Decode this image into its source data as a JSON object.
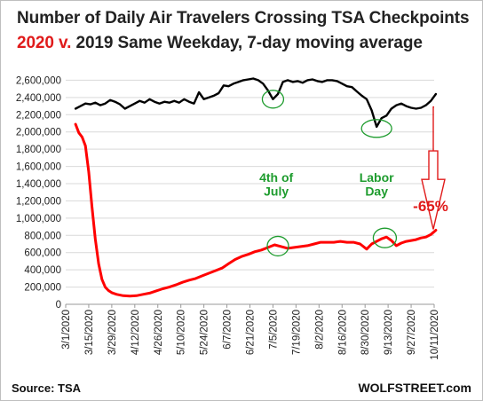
{
  "title": {
    "line1": "Number of Daily Air Travelers Crossing TSA Checkpoints",
    "line2_red": "2020 v.",
    "line2_rest": "2019 Same Weekday, 7-day moving average"
  },
  "source": "Source: TSA",
  "credit": "WOLFSTREET.com",
  "colors": {
    "series_2019": "#000000",
    "series_2020": "#ff0000",
    "annotation_green": "#1e9c2e",
    "annotation_red": "#e01b1b",
    "grid": "#d9d9d9"
  },
  "chart_data": {
    "type": "line",
    "ylim": [
      0,
      2800000
    ],
    "yticks": [
      0,
      200000,
      400000,
      600000,
      800000,
      1000000,
      1200000,
      1400000,
      1600000,
      1800000,
      2000000,
      2200000,
      2400000,
      2600000
    ],
    "ytick_labels": [
      "0",
      "200,000",
      "400,000",
      "600,000",
      "800,000",
      "1,000,000",
      "1,200,000",
      "1,400,000",
      "1,600,000",
      "1,800,000",
      "2,000,000",
      "2,200,000",
      "2,400,000",
      "2,600,000"
    ],
    "xlim": [
      "2020-03-01",
      "2020-10-11"
    ],
    "xticks": [
      "2020-03-01",
      "2020-03-15",
      "2020-03-29",
      "2020-04-12",
      "2020-04-26",
      "2020-05-10",
      "2020-05-24",
      "2020-06-07",
      "2020-06-21",
      "2020-07-05",
      "2020-07-19",
      "2020-08-02",
      "2020-08-16",
      "2020-08-30",
      "2020-09-13",
      "2020-09-27",
      "2020-10-11"
    ],
    "xtick_labels": [
      "3/1/2020",
      "3/15/2020",
      "3/29/2020",
      "4/12/2020",
      "4/26/2020",
      "5/10/2020",
      "5/24/2020",
      "6/7/2020",
      "6/21/2020",
      "7/5/2020",
      "7/19/2020",
      "8/2/2020",
      "8/16/2020",
      "8/30/2020",
      "9/13/2020",
      "9/27/2020",
      "10/11/2020"
    ],
    "grid": "horizontal",
    "series": [
      {
        "x": [
          "2020-03-07",
          "2020-03-10",
          "2020-03-13",
          "2020-03-16",
          "2020-03-19",
          "2020-03-22",
          "2020-03-25",
          "2020-03-28",
          "2020-03-31",
          "2020-04-03",
          "2020-04-06",
          "2020-04-09",
          "2020-04-12",
          "2020-04-15",
          "2020-04-18",
          "2020-04-21",
          "2020-04-24",
          "2020-04-27",
          "2020-04-30",
          "2020-05-03",
          "2020-05-06",
          "2020-05-09",
          "2020-05-12",
          "2020-05-15",
          "2020-05-18",
          "2020-05-21",
          "2020-05-24",
          "2020-05-27",
          "2020-05-30",
          "2020-06-02",
          "2020-06-05",
          "2020-06-08",
          "2020-06-11",
          "2020-06-14",
          "2020-06-17",
          "2020-06-20",
          "2020-06-23",
          "2020-06-26",
          "2020-06-29",
          "2020-07-02",
          "2020-07-05",
          "2020-07-08",
          "2020-07-11",
          "2020-07-14",
          "2020-07-17",
          "2020-07-20",
          "2020-07-23",
          "2020-07-26",
          "2020-07-29",
          "2020-08-01",
          "2020-08-04",
          "2020-08-07",
          "2020-08-10",
          "2020-08-13",
          "2020-08-16",
          "2020-08-19",
          "2020-08-22",
          "2020-08-25",
          "2020-08-28",
          "2020-08-31",
          "2020-09-03",
          "2020-09-06",
          "2020-09-09",
          "2020-09-12",
          "2020-09-15",
          "2020-09-18",
          "2020-09-21",
          "2020-09-24",
          "2020-09-27",
          "2020-09-30",
          "2020-10-03",
          "2020-10-06",
          "2020-10-09",
          "2020-10-12"
        ],
        "values": [
          2270000,
          2300000,
          2330000,
          2320000,
          2340000,
          2310000,
          2330000,
          2370000,
          2350000,
          2320000,
          2270000,
          2300000,
          2330000,
          2360000,
          2340000,
          2380000,
          2350000,
          2330000,
          2350000,
          2340000,
          2360000,
          2340000,
          2380000,
          2350000,
          2330000,
          2460000,
          2380000,
          2400000,
          2420000,
          2450000,
          2540000,
          2530000,
          2560000,
          2580000,
          2600000,
          2610000,
          2620000,
          2600000,
          2560000,
          2480000,
          2380000,
          2440000,
          2580000,
          2600000,
          2580000,
          2590000,
          2570000,
          2600000,
          2610000,
          2590000,
          2580000,
          2600000,
          2600000,
          2590000,
          2560000,
          2530000,
          2520000,
          2470000,
          2420000,
          2380000,
          2250000,
          2060000,
          2160000,
          2190000,
          2270000,
          2310000,
          2330000,
          2300000,
          2280000,
          2270000,
          2280000,
          2310000,
          2360000,
          2440000
        ]
      },
      {
        "x": [
          "2020-03-07",
          "2020-03-09",
          "2020-03-11",
          "2020-03-13",
          "2020-03-15",
          "2020-03-17",
          "2020-03-19",
          "2020-03-21",
          "2020-03-23",
          "2020-03-25",
          "2020-03-27",
          "2020-03-29",
          "2020-04-01",
          "2020-04-05",
          "2020-04-09",
          "2020-04-13",
          "2020-04-17",
          "2020-04-21",
          "2020-04-25",
          "2020-04-29",
          "2020-05-03",
          "2020-05-07",
          "2020-05-11",
          "2020-05-15",
          "2020-05-19",
          "2020-05-23",
          "2020-05-27",
          "2020-05-31",
          "2020-06-04",
          "2020-06-08",
          "2020-06-12",
          "2020-06-16",
          "2020-06-20",
          "2020-06-24",
          "2020-06-28",
          "2020-07-02",
          "2020-07-06",
          "2020-07-10",
          "2020-07-14",
          "2020-07-18",
          "2020-07-22",
          "2020-07-26",
          "2020-07-30",
          "2020-08-03",
          "2020-08-07",
          "2020-08-11",
          "2020-08-15",
          "2020-08-19",
          "2020-08-23",
          "2020-08-27",
          "2020-08-31",
          "2020-09-03",
          "2020-09-06",
          "2020-09-09",
          "2020-09-12",
          "2020-09-15",
          "2020-09-18",
          "2020-09-21",
          "2020-09-24",
          "2020-09-27",
          "2020-09-30",
          "2020-10-03",
          "2020-10-06",
          "2020-10-09",
          "2020-10-12"
        ],
        "values": [
          2090000,
          1990000,
          1940000,
          1840000,
          1540000,
          1130000,
          760000,
          470000,
          290000,
          200000,
          160000,
          135000,
          115000,
          100000,
          95000,
          100000,
          115000,
          130000,
          155000,
          180000,
          200000,
          225000,
          255000,
          280000,
          300000,
          330000,
          360000,
          390000,
          420000,
          470000,
          520000,
          555000,
          580000,
          610000,
          630000,
          660000,
          690000,
          670000,
          650000,
          660000,
          670000,
          680000,
          700000,
          720000,
          720000,
          720000,
          730000,
          720000,
          720000,
          700000,
          640000,
          700000,
          730000,
          760000,
          780000,
          740000,
          680000,
          710000,
          730000,
          740000,
          750000,
          770000,
          780000,
          810000,
          860000
        ]
      }
    ],
    "annotations": {
      "july4": [
        "4th of",
        "July"
      ],
      "labor_day": [
        "Labor",
        "Day"
      ],
      "pct_change": "-65%"
    }
  }
}
